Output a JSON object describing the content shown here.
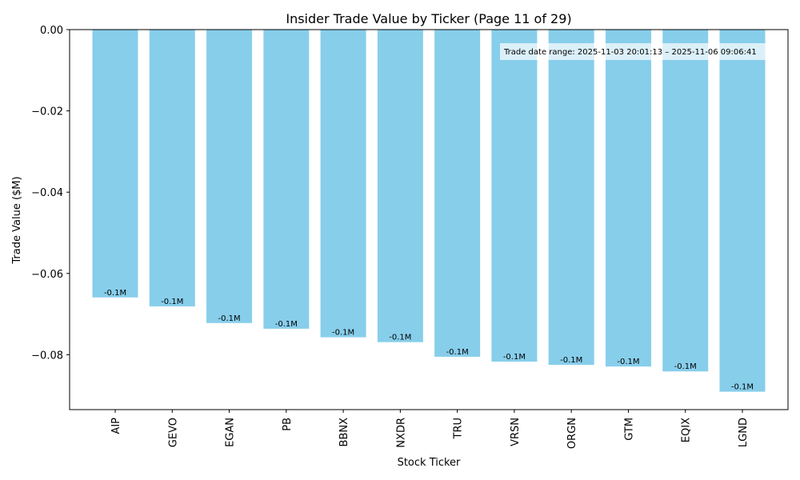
{
  "chart_data": {
    "type": "bar",
    "title": "Insider Trade Value by Ticker (Page 11 of 29)",
    "xlabel": "Stock Ticker",
    "ylabel": "Trade Value ($M)",
    "categories": [
      "AIP",
      "GEVO",
      "EGAN",
      "PB",
      "BBNX",
      "NXDR",
      "TRU",
      "VRSN",
      "ORGN",
      "GTM",
      "EQIX",
      "LGND"
    ],
    "values": [
      -0.0659,
      -0.0681,
      -0.0722,
      -0.0736,
      -0.0757,
      -0.0769,
      -0.0805,
      -0.0817,
      -0.0825,
      -0.0829,
      -0.0841,
      -0.0891
    ],
    "data_labels": [
      "-0.1M",
      "-0.1M",
      "-0.1M",
      "-0.1M",
      "-0.1M",
      "-0.1M",
      "-0.1M",
      "-0.1M",
      "-0.1M",
      "-0.1M",
      "-0.1M",
      "-0.1M"
    ],
    "ylim": [
      -0.0935,
      0.0
    ],
    "yticks": [
      0.0,
      -0.02,
      -0.04,
      -0.06,
      -0.08
    ],
    "ytick_labels": [
      "0.00",
      "−0.02",
      "−0.04",
      "−0.06",
      "−0.08"
    ],
    "annotation": "Trade date range: 2025-11-03 20:01:13 – 2025-11-06 09:06:41",
    "annotation_placement": "top-right",
    "bar_color": "#87CEEB",
    "grid": false
  }
}
